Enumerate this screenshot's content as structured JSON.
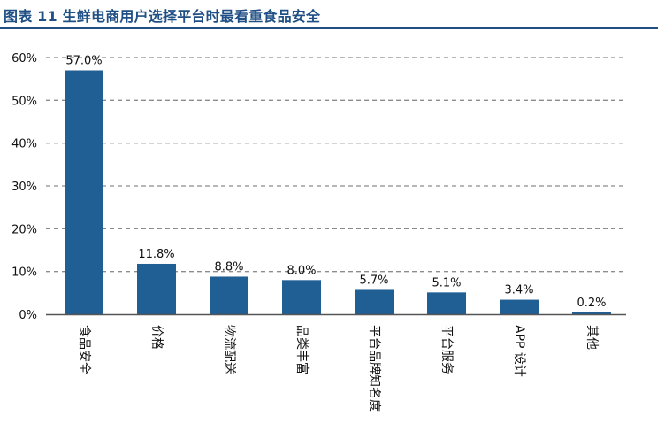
{
  "figure": {
    "title": "图表 11  生鲜电商用户选择平台时最看重食品安全"
  },
  "colors": {
    "bar": "#1f5f93",
    "title": "#1f4f84",
    "grid": "#8c8c8c",
    "axis": "#555555"
  },
  "chart_data": {
    "type": "bar",
    "title": "图表 11  生鲜电商用户选择平台时最看重食品安全",
    "categories": [
      "食品安全",
      "价格",
      "物流配送",
      "品类丰富",
      "平台品牌知名度",
      "平台服务",
      "APP 设计",
      "其他"
    ],
    "values": [
      57.0,
      11.8,
      8.8,
      8.0,
      5.7,
      5.1,
      3.4,
      0.2
    ],
    "data_labels": [
      "57.0%",
      "11.8%",
      "8.8%",
      "8.0%",
      "5.7%",
      "5.1%",
      "3.4%",
      "0.2%"
    ],
    "yticks": [
      "0%",
      "10%",
      "20%",
      "30%",
      "40%",
      "50%",
      "60%"
    ],
    "ytick_values": [
      0,
      10,
      20,
      30,
      40,
      50,
      60
    ],
    "ylim": [
      0,
      60
    ],
    "xlabel": "",
    "ylabel": "",
    "grid": true,
    "grid_style": "dashed"
  }
}
